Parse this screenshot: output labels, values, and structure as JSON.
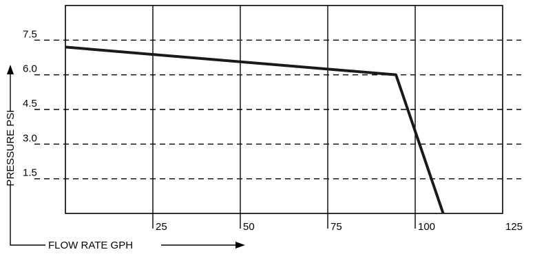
{
  "chart_data": {
    "type": "line",
    "xlabel": "FLOW RATE GPH",
    "ylabel": "PRESSURE PSI",
    "xlim": [
      0,
      125
    ],
    "ylim": [
      0,
      9
    ],
    "x_ticks": [
      {
        "value": 25,
        "label": "25"
      },
      {
        "value": 50,
        "label": "50"
      },
      {
        "value": 75,
        "label": "75"
      },
      {
        "value": 100,
        "label": "100"
      },
      {
        "value": 125,
        "label": "125"
      }
    ],
    "y_ticks": [
      {
        "value": 1.5,
        "label": "1.5"
      },
      {
        "value": 3.0,
        "label": "3.0"
      },
      {
        "value": 4.5,
        "label": "4.5"
      },
      {
        "value": 6.0,
        "label": "6.0"
      },
      {
        "value": 7.5,
        "label": "7.5"
      }
    ],
    "grid": {
      "x": "solid",
      "y": "dashed"
    },
    "series": [
      {
        "points": [
          {
            "x": 0,
            "y": 7.2
          },
          {
            "x": 94.5,
            "y": 6.0
          },
          {
            "x": 108,
            "y": 0
          }
        ]
      }
    ],
    "colors": {
      "line": "#1a1a1a",
      "grid": "#000000"
    }
  }
}
